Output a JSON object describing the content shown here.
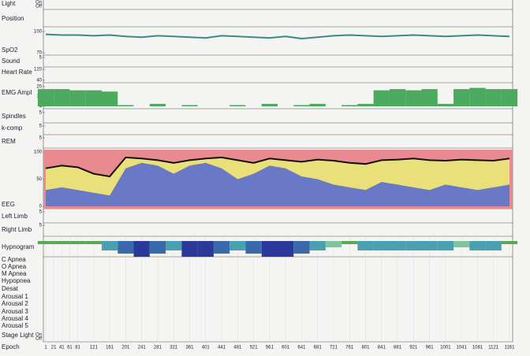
{
  "panels": [
    {
      "label": "Light",
      "ticks": [
        "On",
        "Off"
      ]
    },
    {
      "label": "Position"
    },
    {
      "label": "SpO2",
      "ylim": [
        70,
        100
      ],
      "ticks": [
        100,
        70
      ]
    },
    {
      "label": "Sound",
      "ylim": [
        0,
        5
      ],
      "ticks": [
        5
      ]
    },
    {
      "label": "Heart Rate",
      "ylim": [
        40,
        120
      ],
      "ticks": [
        120,
        40
      ]
    },
    {
      "label": "EMG Ampl",
      "ylim": [
        4,
        20
      ],
      "ticks": [
        20,
        12,
        4
      ]
    },
    {
      "label": "Spindles",
      "ylim": [
        0,
        5
      ],
      "ticks": [
        5
      ]
    },
    {
      "label": "k-comp",
      "ylim": [
        0,
        5
      ],
      "ticks": [
        5
      ]
    },
    {
      "label": "REM",
      "ylim": [
        0,
        5
      ],
      "ticks": [
        5
      ]
    },
    {
      "label": "EEG",
      "ylim": [
        0,
        100
      ],
      "ticks": [
        100,
        50,
        0
      ]
    },
    {
      "label": "Left Limb",
      "ylim": [
        0,
        5
      ],
      "ticks": [
        5
      ]
    },
    {
      "label": "Right Limb",
      "ylim": [
        0,
        5
      ],
      "ticks": [
        5
      ]
    },
    {
      "label": "Hypnogram"
    },
    {
      "label": "C Apnea"
    },
    {
      "label": "O Apnea"
    },
    {
      "label": "M Apnea"
    },
    {
      "label": "Hypopnea"
    },
    {
      "label": "Desat"
    },
    {
      "label": "Arousal 1"
    },
    {
      "label": "Arousal 2"
    },
    {
      "label": "Arousal 3"
    },
    {
      "label": "Arousal 4"
    },
    {
      "label": "Arousal 5"
    },
    {
      "label": "Stage Light",
      "ticks": [
        "On",
        "Off"
      ]
    },
    {
      "label": "Epoch"
    }
  ],
  "epoch_ticks": [
    1,
    21,
    41,
    61,
    81,
    121,
    161,
    201,
    241,
    281,
    321,
    361,
    401,
    441,
    481,
    521,
    561,
    601,
    641,
    681,
    721,
    761,
    801,
    841,
    881,
    921,
    961,
    1001,
    1041,
    1081,
    1121,
    1161
  ],
  "epoch_range": [
    1,
    1161
  ],
  "signals": {
    "epochs": [
      1,
      41,
      81,
      121,
      161,
      201,
      241,
      281,
      321,
      361,
      401,
      441,
      481,
      521,
      561,
      601,
      641,
      681,
      721,
      761,
      801,
      841,
      881,
      921,
      961,
      1001,
      1041,
      1081,
      1121,
      1161
    ],
    "spo2": [
      96,
      95,
      95,
      94,
      95,
      93,
      92,
      94,
      93,
      92,
      91,
      94,
      93,
      92,
      91,
      93,
      90,
      92,
      94,
      95,
      94,
      93,
      94,
      95,
      94,
      93,
      94,
      95,
      94,
      93
    ],
    "emg": [
      18,
      18,
      17,
      17,
      16,
      5,
      4,
      6,
      4,
      5,
      3,
      4,
      5,
      4,
      6,
      4,
      5,
      6,
      4,
      5,
      6,
      17,
      18,
      17,
      18,
      6,
      18,
      19,
      18,
      18
    ],
    "eeg_upper": [
      70,
      75,
      72,
      60,
      55,
      90,
      88,
      85,
      80,
      85,
      88,
      90,
      85,
      80,
      88,
      85,
      82,
      86,
      84,
      80,
      78,
      85,
      86,
      88,
      85,
      84,
      86,
      85,
      84,
      88
    ],
    "eeg_delta": [
      30,
      35,
      30,
      25,
      20,
      70,
      80,
      75,
      60,
      75,
      80,
      70,
      50,
      60,
      75,
      70,
      55,
      50,
      40,
      35,
      30,
      45,
      40,
      35,
      30,
      40,
      35,
      30,
      35,
      40
    ],
    "hypnogram": [
      0,
      0,
      0,
      0,
      2,
      3,
      4,
      3,
      2,
      4,
      4,
      3,
      2,
      3,
      4,
      4,
      3,
      2,
      1,
      0,
      2,
      2,
      2,
      2,
      2,
      2,
      1,
      2,
      2,
      0
    ]
  }
}
